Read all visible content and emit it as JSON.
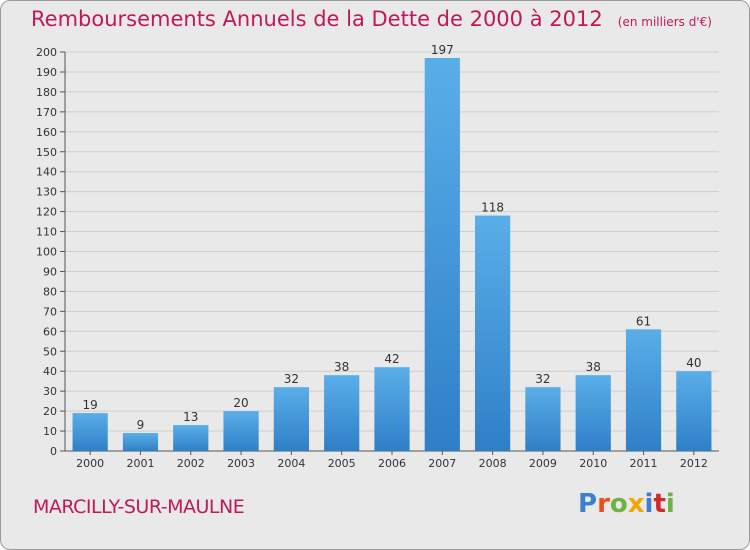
{
  "header": {
    "title": "Remboursements Annuels de la Dette de 2000 à 2012",
    "unit": "(en milliers d'€)"
  },
  "footer": {
    "commune": "MARCILLY-SUR-MAULNE",
    "logo_text": "Proxiti",
    "logo_colors": [
      "#3f7fd0",
      "#e8501e",
      "#6cb33f",
      "#f2a800",
      "#3f7fd0",
      "#d12a2a",
      "#6cb33f"
    ]
  },
  "colors": {
    "title": "#c2185b",
    "bar_light": "#5aaee8",
    "bar_dark": "#2f7fc8",
    "grid": "#cfcfcf",
    "background": "#e9e9e9"
  },
  "chart_data": {
    "type": "bar",
    "title": "Remboursements Annuels de la Dette de 2000 à 2012",
    "xlabel": "",
    "ylabel": "",
    "categories": [
      "2000",
      "2001",
      "2002",
      "2003",
      "2004",
      "2005",
      "2006",
      "2007",
      "2008",
      "2009",
      "2010",
      "2011",
      "2012"
    ],
    "values": [
      19,
      9,
      13,
      20,
      32,
      38,
      42,
      197,
      118,
      32,
      38,
      61,
      40
    ],
    "ylim": [
      0,
      200
    ],
    "yticks": [
      0,
      10,
      20,
      30,
      40,
      50,
      60,
      70,
      80,
      90,
      100,
      110,
      120,
      130,
      140,
      150,
      160,
      170,
      180,
      190,
      200
    ],
    "grid": true,
    "data_labels": true
  }
}
